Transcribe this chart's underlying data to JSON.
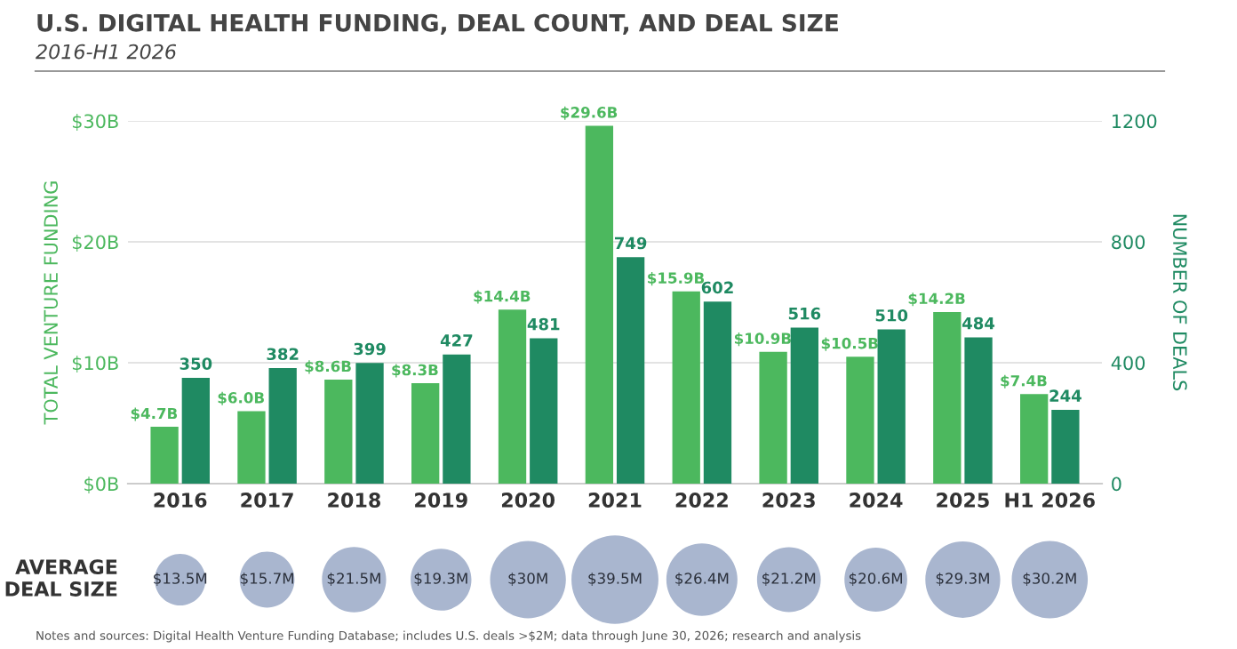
{
  "chart_data": [
    {
      "type": "bar",
      "title": "U.S. DIGITAL HEALTH FUNDING, DEAL COUNT, AND DEAL SIZE",
      "subtitle": "2016-H1 2026",
      "ylabel": "TOTAL VENTURE FUNDING",
      "y2label": "NUMBER OF DEALS",
      "categories": [
        "2016",
        "2017",
        "2018",
        "2019",
        "2020",
        "2021",
        "2022",
        "2023",
        "2024",
        "2025",
        "H1 2026"
      ],
      "series": [
        {
          "color": "#4cb85e",
          "values": [
            4.7,
            6.0,
            8.6,
            8.3,
            14.4,
            29.6,
            15.9,
            10.9,
            10.5,
            14.2,
            7.4
          ],
          "value_labels": [
            "$4.7B",
            "$6.0B",
            "$8.6B",
            "$8.3B",
            "$14.4B",
            "$29.6B",
            "$15.9B",
            "$10.9B",
            "$10.5B",
            "$14.2B",
            "$7.4B"
          ]
        },
        {
          "color": "#1f8a62",
          "axis": "y2",
          "values": [
            350,
            382,
            399,
            427,
            481,
            749,
            602,
            516,
            510,
            484,
            244
          ],
          "value_labels": [
            "350",
            "382",
            "399",
            "427",
            "481",
            "749",
            "602",
            "516",
            "510",
            "484",
            "244"
          ]
        }
      ],
      "ylim": [
        0,
        30
      ],
      "yticks": [
        {
          "value": 0,
          "label": "$0B"
        },
        {
          "value": 10,
          "label": "$10B"
        },
        {
          "value": 20,
          "label": "$20B"
        },
        {
          "value": 30,
          "label": "$30B"
        }
      ],
      "y2lim": [
        0,
        1200
      ],
      "y2ticks": [
        0,
        400,
        800,
        1200
      ],
      "grid": "y",
      "annotations": [
        "Notes and sources: Digital Health Venture Funding Database; includes U.S. deals >$2M; data through June 30, 2026; research and analysis"
      ]
    },
    {
      "type": "other",
      "ylabel": "AVERAGE\nDEAL SIZE",
      "values": [
        13.5,
        15.7,
        21.5,
        19.3,
        30,
        39.5,
        26.4,
        21.2,
        20.6,
        29.3,
        30.2
      ],
      "value_labels": [
        "$13.5M",
        "$15.7M",
        "$21.5M",
        "$19.3M",
        "$30M",
        "$39.5M",
        "$26.4M",
        "$21.2M",
        "$20.6M",
        "$29.3M",
        "$30.2M"
      ],
      "color": "#a9b6cf"
    }
  ]
}
